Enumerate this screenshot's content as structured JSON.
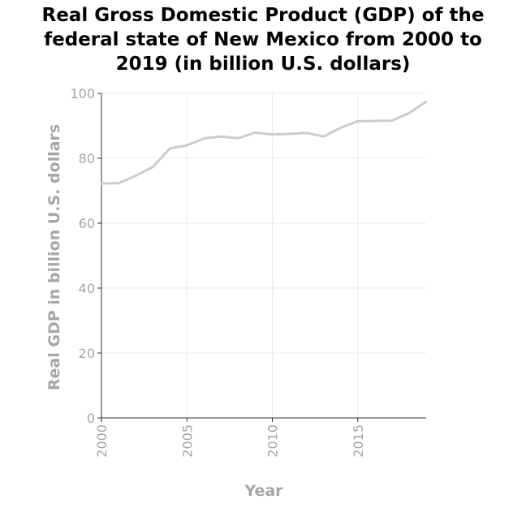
{
  "chart_data": {
    "type": "line",
    "title_lines": [
      "Real Gross Domestic Product (GDP) of the",
      "federal state of New Mexico from 2000 to",
      "2019 (in billion U.S. dollars)"
    ],
    "xlabel": "Year",
    "ylabel": "Real GDP in billion U.S. dollars",
    "xlim": [
      2000,
      2019
    ],
    "ylim": [
      0,
      100
    ],
    "xticks": [
      2000,
      2005,
      2010,
      2015
    ],
    "yticks": [
      0,
      20,
      40,
      60,
      80,
      100
    ],
    "grid": true,
    "series": [
      {
        "color": "#cccccc",
        "x": [
          2000,
          2001,
          2002,
          2003,
          2004,
          2005,
          2006,
          2007,
          2008,
          2009,
          2010,
          2011,
          2012,
          2013,
          2014,
          2015,
          2016,
          2017,
          2018,
          2019
        ],
        "values": [
          72.2,
          72.3,
          74.6,
          77.3,
          83.0,
          84.0,
          86.1,
          86.7,
          86.2,
          87.9,
          87.3,
          87.5,
          87.8,
          86.7,
          89.4,
          91.4,
          91.5,
          91.6,
          93.9,
          97.4
        ]
      }
    ],
    "colors": {
      "grid": "#ebebeb",
      "axis": "#333333",
      "tick_text": "#a6a6a6",
      "line": "#cccccc"
    }
  }
}
